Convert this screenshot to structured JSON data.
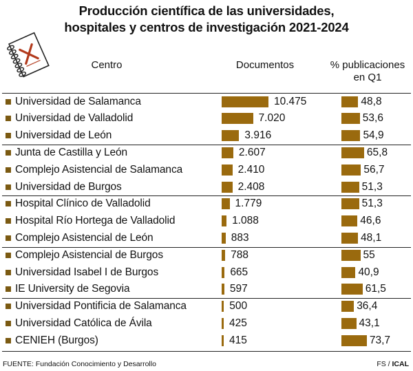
{
  "title_line1": "Producción científica de las universidades,",
  "title_line2": "hospitales y centros de investigación 2021-2024",
  "headers": {
    "centro": "Centro",
    "documentos": "Documentos",
    "q1": "% publicaciones en Q1"
  },
  "source": "FUENTE: Fundación Conocimiento y Desarrollo",
  "credit_fs": "FS / ",
  "credit_ical": "ICAL",
  "accent_color": "#9a6a0e",
  "chart_data": {
    "type": "table",
    "columns": [
      "Centro",
      "Documentos",
      "% publicaciones en Q1"
    ],
    "rows": [
      {
        "name": "Universidad de Salamanca",
        "docs": 10475,
        "docs_label": "10.475",
        "q1": 48.8,
        "q1_label": "48,8"
      },
      {
        "name": "Universidad de Valladolid",
        "docs": 7020,
        "docs_label": "7.020",
        "q1": 53.6,
        "q1_label": "53,6"
      },
      {
        "name": "Universidad de León",
        "docs": 3916,
        "docs_label": "3.916",
        "q1": 54.9,
        "q1_label": "54,9"
      },
      {
        "name": "Junta de Castilla y León",
        "docs": 2607,
        "docs_label": "2.607",
        "q1": 65.8,
        "q1_label": "65,8"
      },
      {
        "name": "Complejo Asistencial de Salamanca",
        "docs": 2410,
        "docs_label": "2.410",
        "q1": 56.7,
        "q1_label": "56,7"
      },
      {
        "name": "Universidad de Burgos",
        "docs": 2408,
        "docs_label": "2.408",
        "q1": 51.3,
        "q1_label": "51,3"
      },
      {
        "name": "Hospital Clínico de Valladolid",
        "docs": 1779,
        "docs_label": "1.779",
        "q1": 51.3,
        "q1_label": "51,3"
      },
      {
        "name": "Hospital Río Hortega de Valladolid",
        "docs": 1088,
        "docs_label": "1.088",
        "q1": 46.6,
        "q1_label": "46,6"
      },
      {
        "name": "Complejo Asistencial de León",
        "docs": 883,
        "docs_label": "883",
        "q1": 48.1,
        "q1_label": "48,1"
      },
      {
        "name": "Complejo Asistencial de Burgos",
        "docs": 788,
        "docs_label": "788",
        "q1": 55,
        "q1_label": "55"
      },
      {
        "name": "Universidad Isabel I de Burgos",
        "docs": 665,
        "docs_label": "665",
        "q1": 40.9,
        "q1_label": "40,9"
      },
      {
        "name": "IE University de Segovia",
        "docs": 597,
        "docs_label": "597",
        "q1": 61.5,
        "q1_label": "61,5"
      },
      {
        "name": "Universidad Pontificia de Salamanca",
        "docs": 500,
        "docs_label": "500",
        "q1": 36.4,
        "q1_label": "36,4"
      },
      {
        "name": "Universidad Católica de Ávila",
        "docs": 425,
        "docs_label": "425",
        "q1": 43.1,
        "q1_label": "43,1"
      },
      {
        "name": "CENIEH (Burgos)",
        "docs": 415,
        "docs_label": "415",
        "q1": 73.7,
        "q1_label": "73,7"
      }
    ],
    "group_breaks_after": [
      2,
      5,
      8,
      11
    ]
  }
}
